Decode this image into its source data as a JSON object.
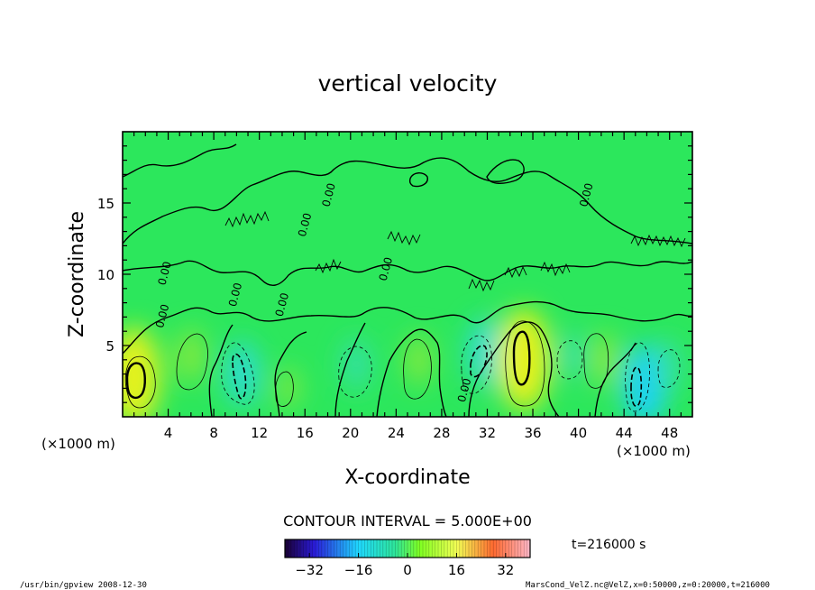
{
  "chart_data": {
    "type": "heatmap",
    "title": "vertical velocity",
    "xlabel": "X-coordinate",
    "ylabel": "Z-coordinate",
    "x_unit": "(×1000 m)",
    "y_unit": "(×1000 m)",
    "xlim": [
      0,
      50
    ],
    "ylim": [
      0,
      20
    ],
    "x_ticks": [
      4,
      8,
      12,
      16,
      20,
      24,
      28,
      32,
      36,
      40,
      44,
      48
    ],
    "y_ticks": [
      5,
      10,
      15
    ],
    "contour_interval_text": "CONTOUR INTERVAL = 5.000E+00",
    "contour_labels": [
      {
        "x": 3.8,
        "y": 7.0,
        "text": "0.00"
      },
      {
        "x": 4.0,
        "y": 10.0,
        "text": "0.00"
      },
      {
        "x": 10.2,
        "y": 8.5,
        "text": "0.00"
      },
      {
        "x": 14.3,
        "y": 7.8,
        "text": "0.00"
      },
      {
        "x": 16.3,
        "y": 13.4,
        "text": "0.00"
      },
      {
        "x": 18.4,
        "y": 15.5,
        "text": "0.00"
      },
      {
        "x": 23.4,
        "y": 10.3,
        "text": "0.00"
      },
      {
        "x": 30.3,
        "y": 1.8,
        "text": "0.00"
      },
      {
        "x": 41.0,
        "y": 15.5,
        "text": "0.00"
      }
    ],
    "cells": [
      {
        "x": 1.0,
        "z": 2.8,
        "value": 22
      },
      {
        "x": 6.0,
        "z": 4.3,
        "value": 9
      },
      {
        "x": 10.5,
        "z": 3.0,
        "value": -12
      },
      {
        "x": 14.5,
        "z": 2.0,
        "value": 5
      },
      {
        "x": 20.5,
        "z": 3.7,
        "value": -8
      },
      {
        "x": 26.0,
        "z": 4.0,
        "value": 8
      },
      {
        "x": 31.8,
        "z": 4.5,
        "value": -13
      },
      {
        "x": 35.2,
        "z": 4.0,
        "value": 24
      },
      {
        "x": 39.5,
        "z": 4.3,
        "value": -6
      },
      {
        "x": 42.3,
        "z": 4.0,
        "value": 9
      },
      {
        "x": 45.8,
        "z": 2.2,
        "value": -17
      },
      {
        "x": 47.8,
        "z": 3.6,
        "value": -8
      }
    ],
    "colorbar": {
      "min": -40,
      "max": 40,
      "ticks": [
        "−32",
        "−16",
        "0",
        "16",
        "32"
      ],
      "tick_values": [
        -32,
        -16,
        0,
        16,
        32
      ]
    },
    "time_label": "t=216000 s"
  },
  "footer": {
    "left": "/usr/bin/gpview   2008-12-30",
    "right": "MarsCond_VelZ.nc@VelZ,x=0:50000,z=0:20000,t=216000"
  }
}
